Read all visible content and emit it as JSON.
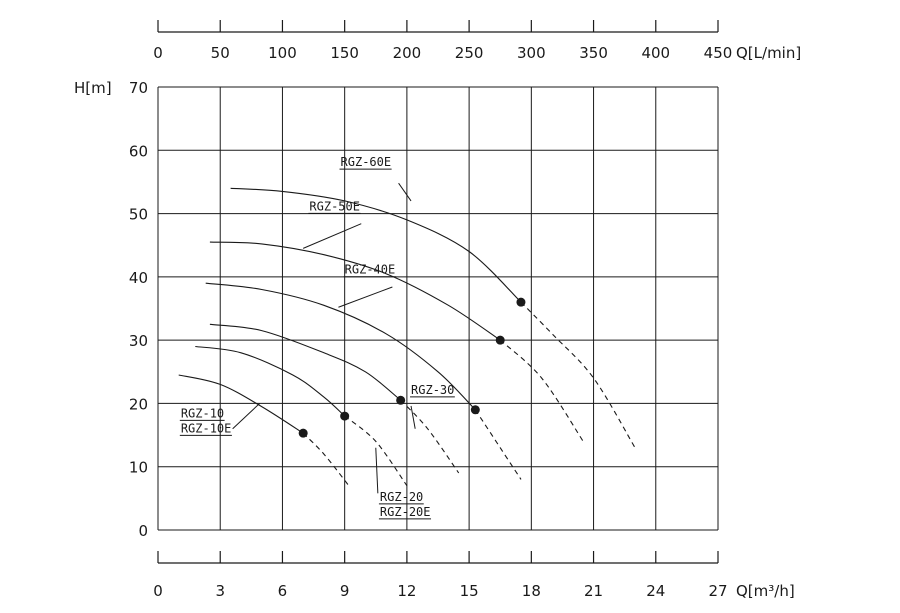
{
  "chart_data": {
    "type": "line",
    "title": "",
    "ylabel": "H[m]",
    "xlabel": "Q[m³/h]",
    "x2label": "Q[L/min]",
    "xlim": [
      0,
      27
    ],
    "ylim": [
      0,
      70
    ],
    "x2lim": [
      0,
      450
    ],
    "xticks": [
      "0",
      "3",
      "6",
      "9",
      "12",
      "15",
      "18",
      "21",
      "24",
      "27"
    ],
    "yticks": [
      "0",
      "10",
      "20",
      "30",
      "40",
      "50",
      "60",
      "70"
    ],
    "x2ticks": [
      "0",
      "50",
      "100",
      "150",
      "200",
      "250",
      "300",
      "350",
      "400",
      "450"
    ],
    "grid": true,
    "line_color": "#1a1a1a",
    "series": [
      {
        "name": "RGZ-60E",
        "label_lines": [
          "RGZ-60E"
        ],
        "points": [
          [
            3.5,
            54
          ],
          [
            6,
            53.5
          ],
          [
            9,
            52
          ],
          [
            12,
            49
          ],
          [
            15,
            44
          ],
          [
            17.5,
            36
          ],
          [
            19,
            31
          ],
          [
            21,
            24
          ],
          [
            23,
            13
          ]
        ],
        "duty_point": [
          17.5,
          36
        ],
        "label_at": [
          8.8,
          57.5
        ],
        "leader": [
          [
            11.6,
            54.8
          ],
          [
            12.2,
            52
          ]
        ]
      },
      {
        "name": "RGZ-50E",
        "label_lines": [
          "RGZ-50E"
        ],
        "points": [
          [
            2.5,
            45.5
          ],
          [
            5,
            45.2
          ],
          [
            8,
            43.5
          ],
          [
            11,
            40.5
          ],
          [
            14,
            35.5
          ],
          [
            16.5,
            30
          ],
          [
            18.5,
            24
          ],
          [
            20.5,
            14
          ]
        ],
        "duty_point": [
          16.5,
          30
        ],
        "label_at": [
          7.3,
          50.5
        ],
        "leader": [
          [
            9.8,
            48.4
          ],
          [
            7,
            44.5
          ]
        ]
      },
      {
        "name": "RGZ-40E",
        "label_lines": [
          "RGZ-40E"
        ],
        "points": [
          [
            2.3,
            39
          ],
          [
            5,
            38
          ],
          [
            8,
            35.5
          ],
          [
            11,
            31
          ],
          [
            13.5,
            25
          ],
          [
            15.3,
            19
          ],
          [
            16.5,
            13
          ],
          [
            17.5,
            8
          ]
        ],
        "duty_point": [
          15.3,
          19
        ],
        "label_at": [
          9,
          40.5
        ],
        "leader": [
          [
            11.3,
            38.4
          ],
          [
            8.7,
            35.2
          ]
        ]
      },
      {
        "name": "RGZ-30",
        "label_lines": [
          "RGZ-30"
        ],
        "points": [
          [
            2.5,
            32.5
          ],
          [
            5,
            31.5
          ],
          [
            8,
            28
          ],
          [
            10,
            25
          ],
          [
            11.7,
            20.5
          ],
          [
            13,
            16
          ],
          [
            14.5,
            9
          ]
        ],
        "duty_point": [
          11.7,
          20.5
        ],
        "label_at": [
          12.2,
          21.5
        ],
        "leader": [
          [
            12.2,
            19.6
          ],
          [
            12.4,
            16
          ]
        ]
      },
      {
        "name": "RGZ-20 / RGZ-20E",
        "label_lines": [
          "RGZ-20",
          "RGZ-20E"
        ],
        "points": [
          [
            1.8,
            29
          ],
          [
            4,
            28
          ],
          [
            6.5,
            24.5
          ],
          [
            8,
            21
          ],
          [
            9,
            18
          ],
          [
            10.5,
            14
          ],
          [
            12,
            7
          ]
        ],
        "duty_point": [
          9,
          18
        ],
        "label_at": [
          10.7,
          4.6
        ],
        "leader": [
          [
            10.6,
            5.8
          ],
          [
            10.5,
            13
          ]
        ]
      },
      {
        "name": "RGZ-10 / RGZ-10E",
        "label_lines": [
          "RGZ-10",
          "RGZ-10E"
        ],
        "points": [
          [
            1,
            24.5
          ],
          [
            3,
            23
          ],
          [
            5,
            19.5
          ],
          [
            7,
            15.3
          ],
          [
            8,
            12
          ],
          [
            9.2,
            7
          ]
        ],
        "duty_point": [
          7,
          15.3
        ],
        "label_at": [
          1.1,
          17.8
        ],
        "leader": [
          [
            3.6,
            16
          ],
          [
            4.9,
            20
          ]
        ]
      }
    ]
  }
}
